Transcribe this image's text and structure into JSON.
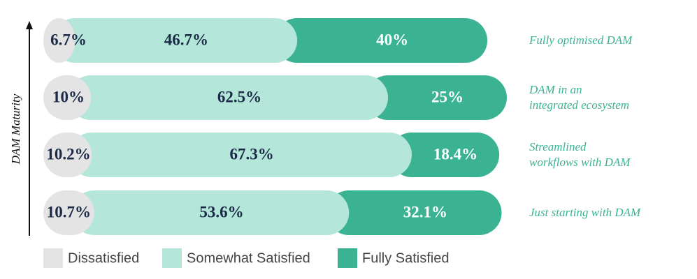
{
  "chart_data": {
    "type": "stacked-bar-horizontal",
    "y_axis_label": "DAM Maturity",
    "categories": [
      "Fully optimised DAM",
      "DAM in an\nintegrated ecosystem",
      "Streamlined\nworkflows with DAM",
      "Just starting with DAM"
    ],
    "xlim": [
      0,
      100
    ],
    "series": [
      {
        "name": "Dissatisfied",
        "color": "#e4e4e4",
        "label_color": "#1b2a47",
        "values": [
          6.7,
          10,
          10.2,
          10.7
        ],
        "value_labels": [
          "6.7%",
          "10%",
          "10.2%",
          "10.7%"
        ]
      },
      {
        "name": "Somewhat Satisfied",
        "color": "#b4e6da",
        "label_color": "#1b2a47",
        "values": [
          46.7,
          62.5,
          67.3,
          53.6
        ],
        "value_labels": [
          "46.7%",
          "62.5%",
          "67.3%",
          "53.6%"
        ]
      },
      {
        "name": "Fully Satisfied",
        "color": "#3bb393",
        "label_color": "#ffffff",
        "values": [
          40,
          25,
          18.4,
          32.1
        ],
        "value_labels": [
          "40%",
          "25%",
          "18.4%",
          "32.1%"
        ]
      }
    ]
  }
}
